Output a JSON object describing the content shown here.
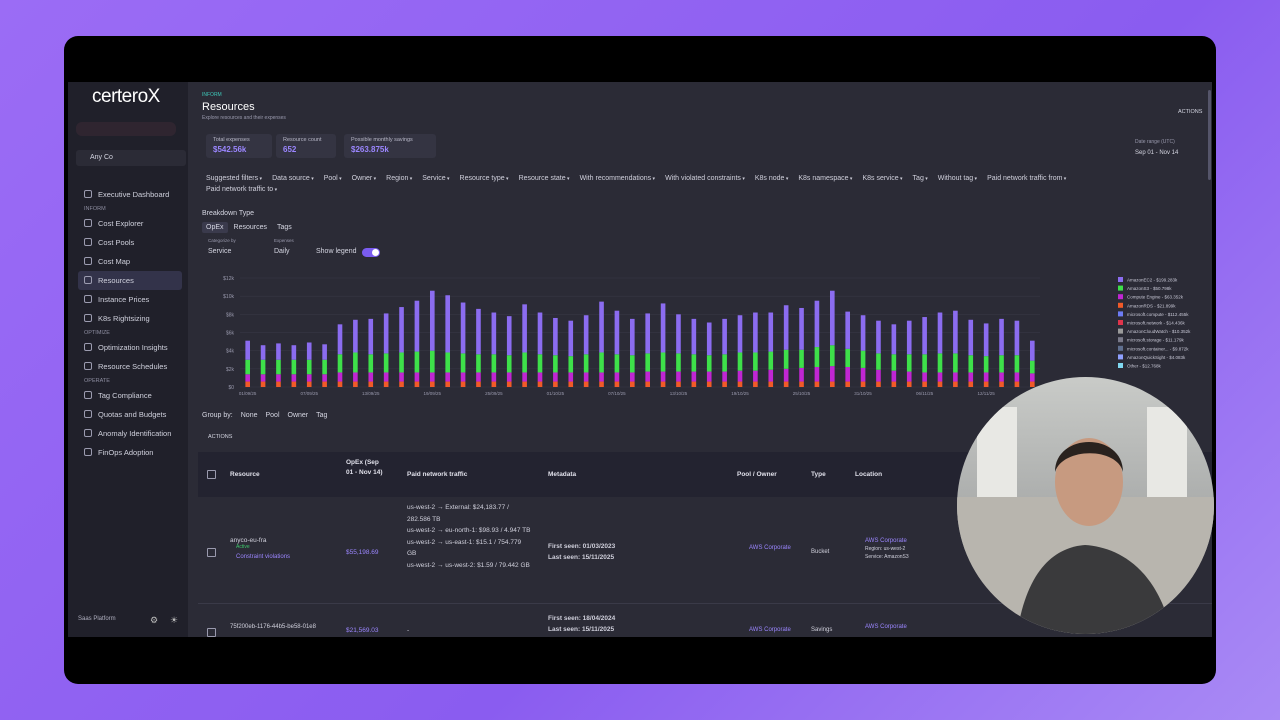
{
  "sidebar": {
    "logo": "certeroX",
    "org": "Any Co",
    "top_item": "Executive Dashboard",
    "sections": [
      {
        "title": "INFORM",
        "items": [
          "Cost Explorer",
          "Cost Pools",
          "Cost Map",
          "Resources",
          "Instance Prices",
          "K8s Rightsizing"
        ]
      },
      {
        "title": "OPTIMIZE",
        "items": [
          "Optimization Insights",
          "Resource Schedules"
        ]
      },
      {
        "title": "OPERATE",
        "items": [
          "Tag Compliance",
          "Quotas and Budgets",
          "Anomaly Identification",
          "FinOps Adoption"
        ]
      }
    ],
    "footer": "Saas Platform"
  },
  "header": {
    "breadcrumb": "INFORM",
    "title": "Resources",
    "subtitle": "Explore resources and their expenses",
    "actions": "ACTIONS",
    "date_range_label": "Date range (UTC)",
    "date_range": "Sep 01 - Nov 14"
  },
  "summary": [
    {
      "label": "Total expenses",
      "value": "$542.56k"
    },
    {
      "label": "Resource count",
      "value": "652"
    },
    {
      "label": "Possible monthly savings",
      "value": "$263.875k"
    }
  ],
  "filters": [
    "Suggested filters",
    "Data source",
    "Pool",
    "Owner",
    "Region",
    "Service",
    "Resource type",
    "Resource state",
    "With recommendations",
    "With violated constraints",
    "K8s node",
    "K8s namespace",
    "K8s service",
    "Tag",
    "Without tag",
    "Paid network traffic from",
    "Paid network traffic to"
  ],
  "breakdown": {
    "title": "Breakdown Type",
    "tabs": [
      "OpEx",
      "Resources",
      "Tags"
    ],
    "categorize_label": "Categorize by",
    "categorize": "Service",
    "expenses_label": "Expenses",
    "expenses": "Daily",
    "show_legend": "Show legend"
  },
  "chart_data": {
    "type": "bar",
    "stacked": true,
    "ylim": [
      0,
      12
    ],
    "yticks": [
      {
        "value": 0,
        "label": "$0"
      },
      {
        "value": 2,
        "label": "$2k"
      },
      {
        "value": 4,
        "label": "$4k"
      },
      {
        "value": 6,
        "label": "$6k"
      },
      {
        "value": 8,
        "label": "$8k"
      },
      {
        "value": 10,
        "label": "$10k"
      },
      {
        "value": 12,
        "label": "$12k"
      }
    ],
    "grid": true,
    "categories": [
      "01/09/25",
      null,
      null,
      null,
      "07/09/25",
      null,
      null,
      null,
      "13/09/25",
      null,
      null,
      null,
      "19/09/25",
      null,
      null,
      null,
      "25/09/25",
      null,
      null,
      null,
      "01/10/25",
      null,
      null,
      null,
      "07/10/25",
      null,
      null,
      null,
      "13/10/25",
      null,
      null,
      null,
      "19/10/25",
      null,
      null,
      null,
      "25/10/25",
      null,
      null,
      null,
      "31/10/25",
      null,
      null,
      null,
      "06/11/25",
      null,
      null,
      null,
      "12/11/25",
      null,
      null,
      null
    ],
    "series": [
      {
        "name": "AmazonRDS - $21.899k",
        "color": "#f05a28",
        "values": [
          0.6,
          0.6,
          0.6,
          0.6,
          0.6,
          0.6,
          0.6,
          0.6,
          0.6,
          0.6,
          0.6,
          0.6,
          0.6,
          0.6,
          0.6,
          0.6,
          0.6,
          0.6,
          0.6,
          0.6,
          0.6,
          0.6,
          0.6,
          0.6,
          0.6,
          0.6,
          0.6,
          0.6,
          0.6,
          0.6,
          0.6,
          0.6,
          0.6,
          0.6,
          0.6,
          0.6,
          0.6,
          0.6,
          0.6,
          0.6,
          0.6,
          0.6,
          0.6,
          0.6,
          0.6,
          0.6,
          0.6,
          0.6,
          0.6,
          0.6,
          0.6,
          0.6
        ]
      },
      {
        "name": "Compute Engine - $63.352k",
        "color": "#c026d3",
        "values": [
          0.8,
          0.8,
          0.8,
          0.8,
          0.8,
          0.8,
          1.0,
          1.0,
          1.0,
          1.0,
          1.0,
          1.0,
          1.0,
          1.0,
          1.0,
          1.0,
          1.0,
          1.0,
          1.0,
          1.0,
          1.0,
          1.0,
          1.0,
          1.0,
          1.0,
          1.0,
          1.1,
          1.1,
          1.1,
          1.1,
          1.1,
          1.1,
          1.2,
          1.2,
          1.3,
          1.4,
          1.5,
          1.6,
          1.7,
          1.6,
          1.5,
          1.3,
          1.2,
          1.1,
          1.0,
          1.0,
          1.0,
          1.0,
          1.0,
          1.0,
          1.0,
          0.9
        ]
      },
      {
        "name": "AmazonS3 - $50.798k",
        "color": "#3ee04a",
        "values": [
          1.6,
          1.6,
          1.6,
          1.6,
          1.6,
          1.6,
          2.0,
          2.2,
          2.0,
          2.1,
          2.2,
          2.3,
          2.4,
          2.2,
          2.1,
          2.0,
          2.0,
          1.9,
          2.2,
          2.0,
          1.9,
          1.8,
          2.0,
          2.2,
          2.0,
          1.9,
          2.0,
          2.1,
          2.0,
          1.9,
          1.8,
          1.9,
          2.0,
          2.0,
          2.0,
          2.1,
          2.0,
          2.2,
          2.3,
          2.0,
          1.9,
          1.8,
          1.8,
          1.9,
          2.0,
          2.1,
          2.1,
          1.9,
          1.8,
          1.9,
          1.9,
          1.4
        ]
      },
      {
        "name": "AmazonEC2 - $199.283k",
        "color": "#8b6cf0",
        "values": [
          2.1,
          1.6,
          1.8,
          1.6,
          1.9,
          1.7,
          3.3,
          3.6,
          3.9,
          4.4,
          5.0,
          5.6,
          6.6,
          6.3,
          5.6,
          5.0,
          4.6,
          4.3,
          5.3,
          4.6,
          4.1,
          3.9,
          4.3,
          5.6,
          4.8,
          4.0,
          4.4,
          5.4,
          4.3,
          3.9,
          3.6,
          3.9,
          4.1,
          4.4,
          4.3,
          4.9,
          4.6,
          5.1,
          6.0,
          4.1,
          3.9,
          3.6,
          3.3,
          3.7,
          4.1,
          4.5,
          4.7,
          3.9,
          3.6,
          4.0,
          3.8,
          2.2
        ]
      }
    ],
    "legend_items": [
      {
        "name": "microsoft.compute - $112.455k",
        "color": "#6d7cf5"
      },
      {
        "name": "microsoft.network - $14.436k",
        "color": "#e0344b"
      },
      {
        "name": "AmazonCloudWatch - $10.352k",
        "color": "#9a9a9a"
      },
      {
        "name": "microsoft.storage - $11.179k",
        "color": "#7a7a8a"
      },
      {
        "name": "microsoft.container... - $9.872k",
        "color": "#5f6f8f"
      },
      {
        "name": "AmazonQuickSight - $4.083k",
        "color": "#8fa0ff"
      },
      {
        "name": "Other - $12.768k",
        "color": "#7fd8f0"
      }
    ]
  },
  "group_by": {
    "label": "Group by:",
    "options": [
      "None",
      "Pool",
      "Owner",
      "Tag"
    ]
  },
  "table": {
    "actions": "ACTIONS",
    "columns": [
      "Resource",
      "OpEx (Sep 01 - Nov 14)",
      "Paid network traffic",
      "Metadata",
      "Pool / Owner",
      "Type",
      "Location"
    ],
    "rows": [
      {
        "resource": "anyco-eu-fra",
        "status": "Active",
        "flag": "Constraint violations",
        "opex": "$55,198.69",
        "traffic": [
          "us-west-2 → External: $24,183.77 / 282.586 TB",
          "us-west-2 → eu-north-1: $98.93 / 4.947 TB",
          "us-west-2 → us-east-1: $15.1 / 754.779 GB",
          "us-west-2 → us-west-2: $1.59 / 79.442 GB"
        ],
        "first_seen": "First seen: 01/03/2023",
        "last_seen": "Last seen: 15/11/2025",
        "pool": "AWS Corporate",
        "type": "Bucket",
        "location": [
          "AWS Corporate",
          "Region: us-west-2",
          "Service: AmazonS3"
        ]
      },
      {
        "resource": "75f200eb-1176-44b5-be58-01e8",
        "opex": "$21,569.03",
        "traffic": [
          "-"
        ],
        "first_seen": "First seen: 18/04/2024",
        "last_seen": "Last seen: 15/11/2025",
        "pool": "AWS Corporate",
        "type": "Savings",
        "location": [
          "AWS Corporate"
        ]
      }
    ]
  }
}
